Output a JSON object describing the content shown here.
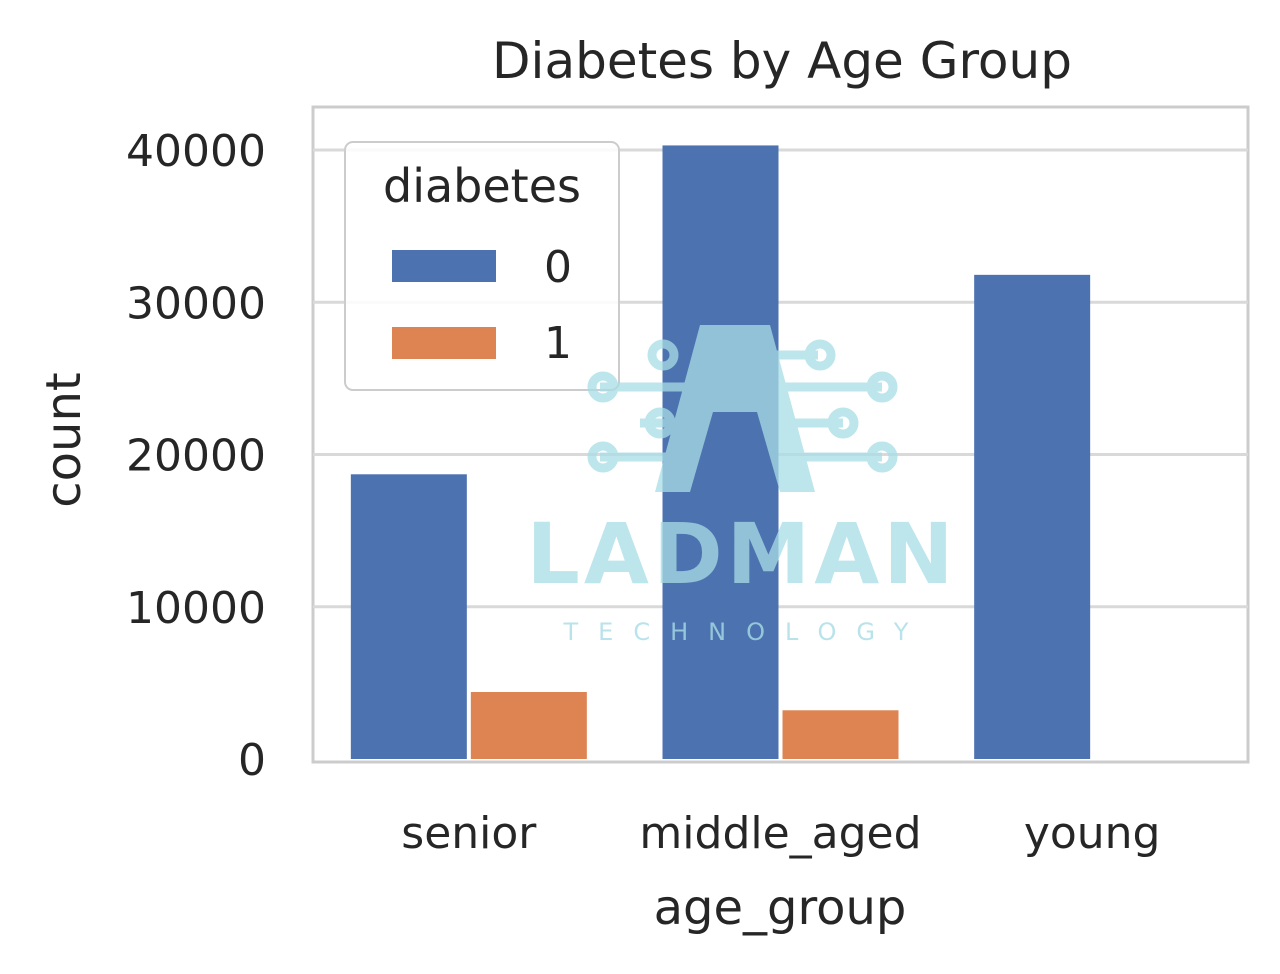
{
  "chart_data": {
    "type": "bar",
    "title": "Diabetes by Age Group",
    "xlabel": "age_group",
    "ylabel": "count",
    "categories": [
      "senior",
      "middle_aged",
      "young"
    ],
    "series": [
      {
        "name": "0",
        "color": "#4c72b0",
        "values": [
          18700,
          40300,
          31800
        ]
      },
      {
        "name": "1",
        "color": "#dd8452",
        "values": [
          4400,
          3200,
          0
        ]
      }
    ],
    "ylim": [
      0,
      40500
    ],
    "yticks": [
      0,
      10000,
      20000,
      30000,
      40000
    ],
    "ytick_labels": [
      "0",
      "10000",
      "20000",
      "30000",
      "40000"
    ],
    "legend": {
      "title": "diabetes",
      "placement": "top-left"
    },
    "grid": true
  },
  "watermark": {
    "text": "LADMAN",
    "subtext": "TECHNOLOGY",
    "icon": "circuit-a-logo-icon",
    "color": "#a8dde6"
  }
}
